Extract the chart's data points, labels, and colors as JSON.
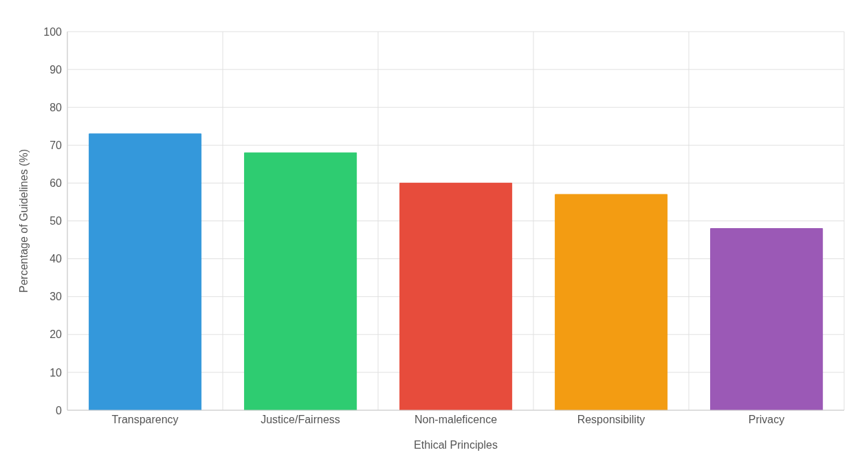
{
  "chart_data": {
    "type": "bar",
    "xlabel": "Ethical Principles",
    "ylabel": "Percentage of Guidelines (%)",
    "categories": [
      "Transparency",
      "Justice/Fairness",
      "Non-maleficence",
      "Responsibility",
      "Privacy"
    ],
    "values": [
      73,
      68,
      60,
      57,
      48
    ],
    "colors": [
      "#3498db",
      "#2ecc71",
      "#e74c3c",
      "#f39c12",
      "#9b59b6"
    ],
    "ylim": [
      0,
      100
    ],
    "yticks": [
      0,
      10,
      20,
      30,
      40,
      50,
      60,
      70,
      80,
      90,
      100
    ],
    "grid": true
  }
}
